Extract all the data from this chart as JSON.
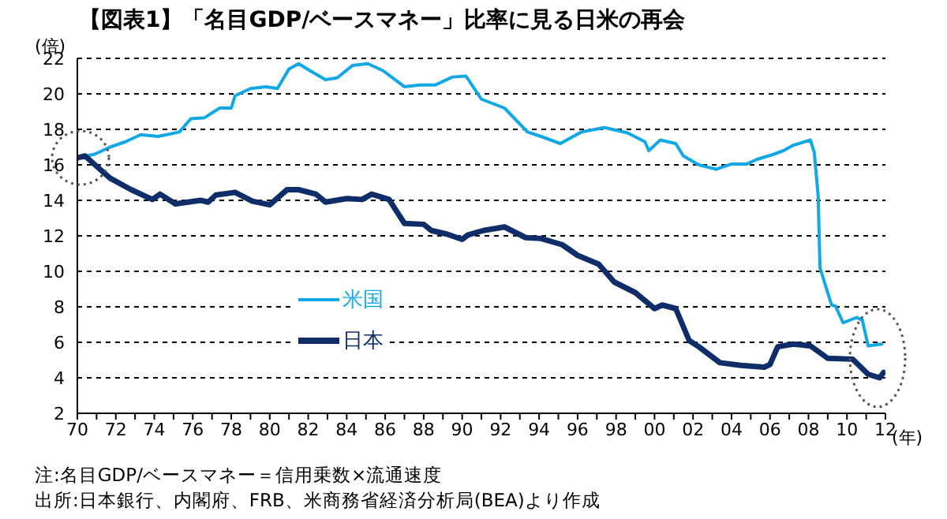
{
  "chart_data": {
    "type": "line",
    "title": "【図表1】「名目GDP/ベースマネー」比率に見る日米の再会",
    "xlabel": "(年)",
    "ylabel": "(倍)",
    "annotations": [
      "注:名目GDP/ベースマネー＝信用乗数×流通速度",
      "出所:日本銀行、内閣府、FRB、米商務省経済分析局(BEA)より作成"
    ],
    "xlim": [
      1970,
      2012
    ],
    "xticks": [
      {
        "value": 1970,
        "label": "70"
      },
      {
        "value": 1971,
        "label": null
      },
      {
        "value": 1972,
        "label": "72"
      },
      {
        "value": 1973,
        "label": null
      },
      {
        "value": 1974,
        "label": "74"
      },
      {
        "value": 1975,
        "label": null
      },
      {
        "value": 1976,
        "label": "76"
      },
      {
        "value": 1977,
        "label": null
      },
      {
        "value": 1978,
        "label": "78"
      },
      {
        "value": 1979,
        "label": null
      },
      {
        "value": 1980,
        "label": "80"
      },
      {
        "value": 1981,
        "label": null
      },
      {
        "value": 1982,
        "label": "82"
      },
      {
        "value": 1983,
        "label": null
      },
      {
        "value": 1984,
        "label": "84"
      },
      {
        "value": 1985,
        "label": null
      },
      {
        "value": 1986,
        "label": "86"
      },
      {
        "value": 1987,
        "label": null
      },
      {
        "value": 1988,
        "label": "88"
      },
      {
        "value": 1989,
        "label": null
      },
      {
        "value": 1990,
        "label": "90"
      },
      {
        "value": 1991,
        "label": null
      },
      {
        "value": 1992,
        "label": "92"
      },
      {
        "value": 1993,
        "label": null
      },
      {
        "value": 1994,
        "label": "94"
      },
      {
        "value": 1995,
        "label": null
      },
      {
        "value": 1996,
        "label": "96"
      },
      {
        "value": 1997,
        "label": null
      },
      {
        "value": 1998,
        "label": "98"
      },
      {
        "value": 1999,
        "label": null
      },
      {
        "value": 2000,
        "label": "00"
      },
      {
        "value": 2001,
        "label": null
      },
      {
        "value": 2002,
        "label": "02"
      },
      {
        "value": 2003,
        "label": null
      },
      {
        "value": 2004,
        "label": "04"
      },
      {
        "value": 2005,
        "label": null
      },
      {
        "value": 2006,
        "label": "06"
      },
      {
        "value": 2007,
        "label": null
      },
      {
        "value": 2008,
        "label": "08"
      },
      {
        "value": 2009,
        "label": null
      },
      {
        "value": 2010,
        "label": "10"
      },
      {
        "value": 2011,
        "label": null
      },
      {
        "value": 2012,
        "label": "12"
      }
    ],
    "ylim": [
      2,
      22
    ],
    "yticks": [
      2,
      4,
      6,
      8,
      10,
      12,
      14,
      16,
      18,
      20,
      22
    ],
    "grid": "y",
    "legend": "center",
    "line_style": "solid",
    "marker": "none",
    "series": [
      {
        "name": "米国",
        "color": "#12a8e6",
        "x": [
          1970,
          1970.9,
          1971.7,
          1972.5,
          1973.3,
          1974.2,
          1975.3,
          1975.9,
          1976.6,
          1977.4,
          1978,
          1978.2,
          1979,
          1979.8,
          1980.4,
          1981,
          1981.5,
          1982.1,
          1982.9,
          1983.5,
          1984.3,
          1985.1,
          1985.9,
          1987,
          1987.8,
          1988.6,
          1989.5,
          1990.2,
          1991,
          1992.2,
          1993.4,
          1994.1,
          1995.1,
          1996.2,
          1997.4,
          1998.6,
          1999.5,
          1999.7,
          2000.3,
          2001.1,
          2001.5,
          2002.3,
          2003.2,
          2004,
          2004.8,
          2005.3,
          2006.2,
          2006.7,
          2007.2,
          2008.1,
          2008.3,
          2008.5,
          2008.6,
          2009.2,
          2009.4,
          2009.8,
          2010.5,
          2010.8,
          2011.1,
          2011.8
        ],
        "values": [
          16.4,
          16.6,
          17.0,
          17.3,
          17.7,
          17.6,
          17.85,
          18.6,
          18.65,
          19.2,
          19.2,
          19.9,
          20.3,
          20.4,
          20.3,
          21.4,
          21.7,
          21.3,
          20.8,
          20.9,
          21.6,
          21.7,
          21.3,
          20.4,
          20.5,
          20.5,
          20.95,
          21.0,
          19.7,
          19.2,
          17.85,
          17.6,
          17.2,
          17.85,
          18.1,
          17.8,
          17.3,
          16.8,
          17.4,
          17.2,
          16.5,
          16.0,
          15.75,
          16.05,
          16.05,
          16.3,
          16.6,
          16.8,
          17.1,
          17.4,
          16.7,
          14.3,
          10.2,
          8.1,
          8.05,
          7.1,
          7.4,
          7.25,
          5.8,
          5.9
        ]
      },
      {
        "name": "日本",
        "color": "#0f2d69",
        "x": [
          1970,
          1970.4,
          1971.7,
          1972.8,
          1973.9,
          1974.3,
          1975.1,
          1976.4,
          1976.8,
          1977.2,
          1978.2,
          1979.1,
          1980,
          1980.9,
          1981.5,
          1982.4,
          1982.9,
          1984,
          1984.8,
          1985.3,
          1986.2,
          1987,
          1988,
          1988.4,
          1989.2,
          1990,
          1990.3,
          1991.1,
          1992.2,
          1993.3,
          1994.1,
          1995.2,
          1996,
          1997.1,
          1997.9,
          1999,
          2000,
          2000.4,
          2001.1,
          2001.8,
          2002.3,
          2003.4,
          2004.5,
          2005.7,
          2006,
          2006.4,
          2007.2,
          2008.1,
          2009,
          2010.3,
          2011.1,
          2011.7,
          2011.9
        ],
        "values": [
          16.4,
          16.5,
          15.25,
          14.6,
          14.05,
          14.35,
          13.8,
          14.0,
          13.9,
          14.3,
          14.45,
          13.95,
          13.75,
          14.6,
          14.6,
          14.35,
          13.9,
          14.1,
          14.05,
          14.35,
          14.05,
          12.7,
          12.65,
          12.3,
          12.1,
          11.8,
          12.05,
          12.3,
          12.5,
          11.9,
          11.85,
          11.5,
          10.9,
          10.4,
          9.4,
          8.8,
          7.9,
          8.1,
          7.9,
          6.1,
          5.75,
          4.85,
          4.7,
          4.6,
          4.75,
          5.75,
          5.9,
          5.8,
          5.1,
          5.05,
          4.2,
          4.0,
          4.3
        ]
      }
    ]
  }
}
